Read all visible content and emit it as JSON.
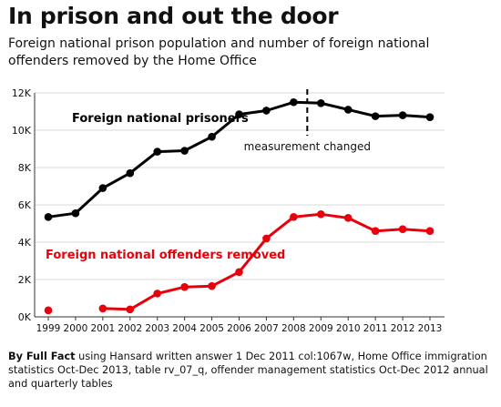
{
  "title": "In prison and out the door",
  "subtitle": "Foreign national prison population and number of foreign national offenders removed by the Home Office",
  "source": {
    "lead": "By Full Fact",
    "text": " using Hansard written answer 1 Dec 2011 col:1067w, Home Office immigration statistics Oct-Dec 2013, table rv_07_q, offender management statistics Oct-Dec 2012 annual and quarterly tables"
  },
  "chart_data": {
    "type": "line",
    "title": "In prison and out the door",
    "xlabel": "",
    "ylabel": "",
    "x": [
      "1999",
      "2000",
      "2001",
      "2002",
      "2003",
      "2004",
      "2005",
      "2006",
      "2007",
      "2008",
      "2009",
      "2010",
      "2011",
      "2012",
      "2013"
    ],
    "y_ticks": [
      "0K",
      "2K",
      "4K",
      "6K",
      "8K",
      "10K",
      "12K"
    ],
    "ylim": [
      0,
      12000
    ],
    "grid": "horizontal",
    "annotation": {
      "x": "2008.5",
      "label": "measurement changed"
    },
    "series": [
      {
        "name": "Foreign national prisoners",
        "color": "#000000",
        "values": [
          5350,
          5550,
          6900,
          7700,
          8850,
          8900,
          9650,
          10850,
          11050,
          11500,
          11450,
          11100,
          10750,
          10800,
          10700
        ]
      },
      {
        "name": "Foreign national offenders removed",
        "color": "#e8000b",
        "values": [
          350,
          null,
          450,
          400,
          1250,
          1600,
          1650,
          2400,
          4200,
          5350,
          5500,
          5300,
          4600,
          4700,
          4600
        ]
      }
    ]
  }
}
